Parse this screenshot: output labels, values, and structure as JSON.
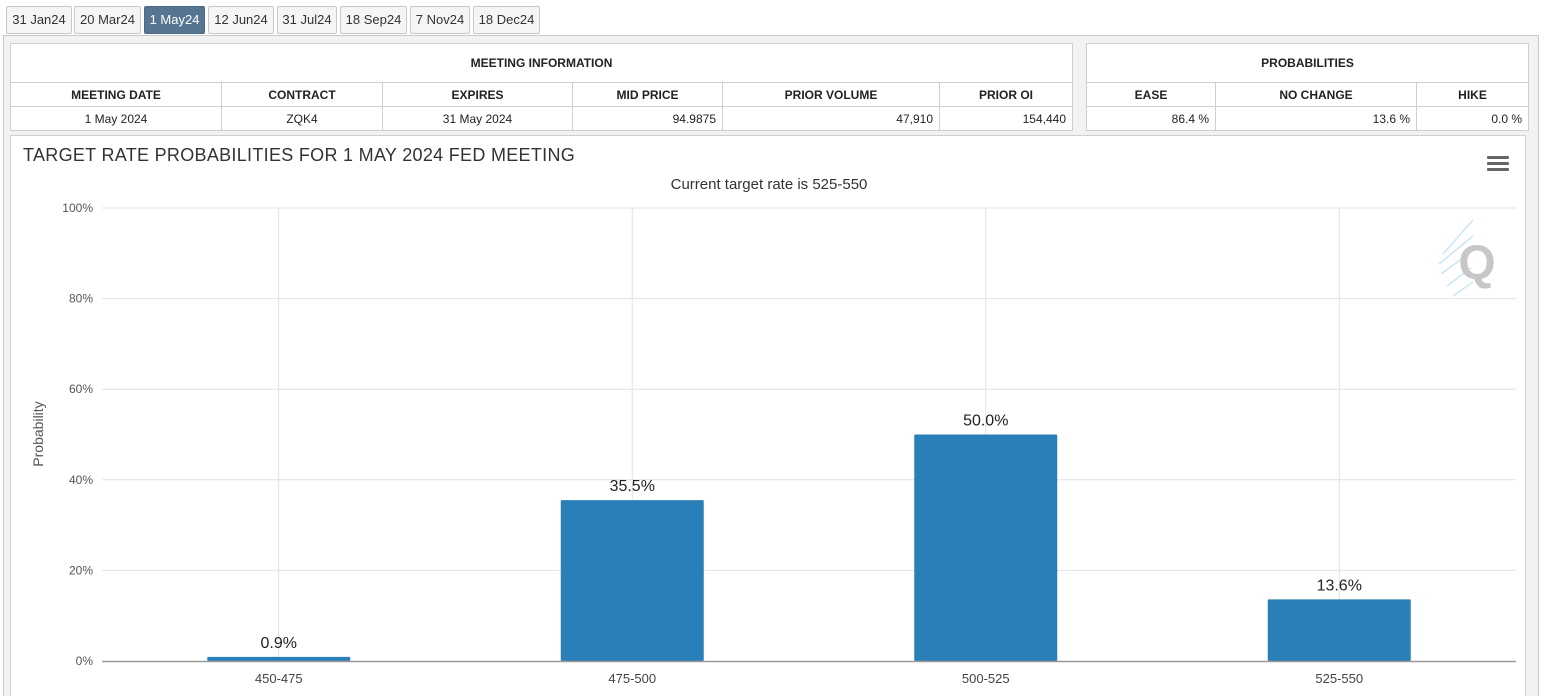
{
  "tabs": [
    {
      "label": "31 Jan24"
    },
    {
      "label": "20 Mar24"
    },
    {
      "label": "1 May24"
    },
    {
      "label": "12 Jun24"
    },
    {
      "label": "31 Jul24"
    },
    {
      "label": "18 Sep24"
    },
    {
      "label": "7 Nov24"
    },
    {
      "label": "18 Dec24"
    }
  ],
  "active_tab": "1 May24",
  "meeting_info": {
    "title": "MEETING INFORMATION",
    "headers": [
      "MEETING DATE",
      "CONTRACT",
      "EXPIRES",
      "MID PRICE",
      "PRIOR VOLUME",
      "PRIOR OI"
    ],
    "values": [
      "1 May 2024",
      "ZQK4",
      "31 May 2024",
      "94.9875",
      "47,910",
      "154,440"
    ]
  },
  "probabilities": {
    "title": "PROBABILITIES",
    "headers": [
      "EASE",
      "NO CHANGE",
      "HIKE"
    ],
    "values": [
      "86.4 %",
      "13.6 %",
      "0.0 %"
    ]
  },
  "chart": {
    "title": "TARGET RATE PROBABILITIES FOR 1 MAY 2024 FED MEETING",
    "subtitle": "Current target rate is 525-550",
    "menu_icon": "hamburger-menu-icon",
    "watermark_icon": "q-logo-icon"
  },
  "chart_data": {
    "type": "bar",
    "title": "TARGET RATE PROBABILITIES FOR 1 MAY 2024 FED MEETING",
    "subtitle": "Current target rate is 525-550",
    "categories": [
      "450-475",
      "475-500",
      "500-525",
      "525-550"
    ],
    "values": [
      0.9,
      35.5,
      50.0,
      13.6
    ],
    "data_labels": [
      "0.9%",
      "35.5%",
      "50.0%",
      "13.6%"
    ],
    "ylabel": "Probability",
    "xlabel": "",
    "ylim": [
      0,
      100
    ],
    "yticks": [
      "0%",
      "20%",
      "40%",
      "60%",
      "80%",
      "100%"
    ],
    "grid": true,
    "bar_color": "#2a7fb8"
  }
}
